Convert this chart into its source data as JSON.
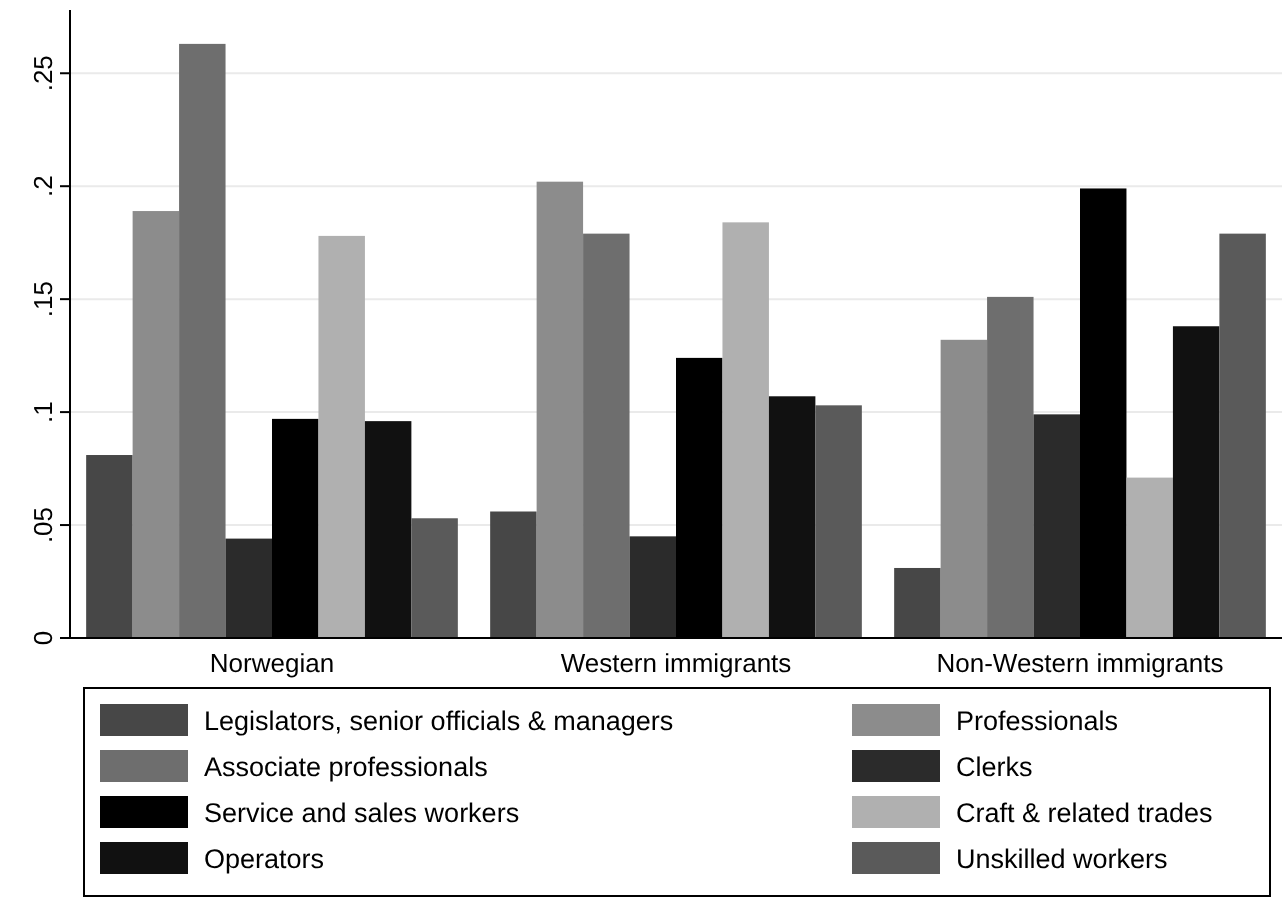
{
  "chart_data": {
    "type": "bar",
    "categories": [
      "Norwegian",
      "Western immigrants",
      "Non-Western immigrants"
    ],
    "series": [
      {
        "name": "Legislators, senior officials & managers",
        "color": "#474747",
        "values": [
          0.081,
          0.056,
          0.031
        ]
      },
      {
        "name": "Professionals",
        "color": "#8c8c8c",
        "values": [
          0.189,
          0.202,
          0.132
        ]
      },
      {
        "name": "Associate professionals",
        "color": "#6e6e6e",
        "values": [
          0.263,
          0.179,
          0.151
        ]
      },
      {
        "name": "Clerks",
        "color": "#2b2b2b",
        "values": [
          0.044,
          0.045,
          0.099
        ]
      },
      {
        "name": "Service and sales workers",
        "color": "#000000",
        "values": [
          0.097,
          0.124,
          0.199
        ]
      },
      {
        "name": "Craft & related trades",
        "color": "#b0b0b0",
        "values": [
          0.178,
          0.184,
          0.071
        ]
      },
      {
        "name": "Operators",
        "color": "#111111",
        "values": [
          0.096,
          0.107,
          0.138
        ]
      },
      {
        "name": "Unskilled workers",
        "color": "#5a5a5a",
        "values": [
          0.053,
          0.103,
          0.179
        ]
      }
    ],
    "ylim": [
      0,
      0.278
    ],
    "yticks": [
      {
        "value": 0,
        "label": "0"
      },
      {
        "value": 0.05,
        "label": ".05"
      },
      {
        "value": 0.1,
        "label": ".1"
      },
      {
        "value": 0.15,
        "label": ".15"
      },
      {
        "value": 0.2,
        "label": ".2"
      },
      {
        "value": 0.25,
        "label": ".25"
      }
    ],
    "grid": "y",
    "legend": "bottom"
  }
}
